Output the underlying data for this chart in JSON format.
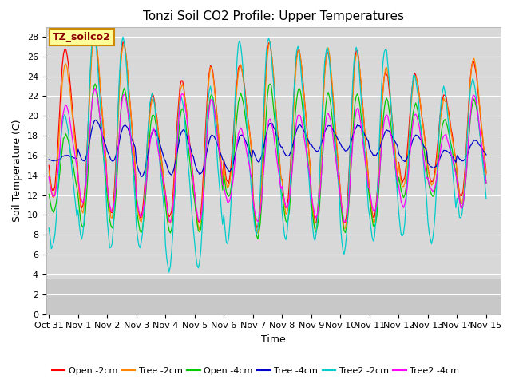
{
  "title": "Tonzi Soil CO2 Profile: Upper Temperatures",
  "xlabel": "Time",
  "ylabel": "Soil Temperature (C)",
  "ylim": [
    0,
    29
  ],
  "background_color": "#ffffff",
  "plot_bg_color": "#d8d8d8",
  "plot_bottom_color": "#c8c8c8",
  "annotation_text": "TZ_soilco2",
  "annotation_bg": "#ffff99",
  "annotation_border": "#cc8800",
  "x_tick_labels": [
    "Oct 31",
    "Nov 1",
    "Nov 2",
    "Nov 3",
    "Nov 4",
    "Nov 5",
    "Nov 6",
    "Nov 7",
    "Nov 8",
    "Nov 9",
    "Nov 10",
    "Nov 11",
    "Nov 12",
    "Nov 13",
    "Nov 14",
    "Nov 15"
  ],
  "series": [
    {
      "label": "Open -2cm",
      "color": "#ff0000"
    },
    {
      "label": "Tree -2cm",
      "color": "#ff8800"
    },
    {
      "label": "Open -4cm",
      "color": "#00cc00"
    },
    {
      "label": "Tree -4cm",
      "color": "#0000cc"
    },
    {
      "label": "Tree2 -2cm",
      "color": "#00cccc"
    },
    {
      "label": "Tree2 -4cm",
      "color": "#ff00ff"
    }
  ],
  "yticks": [
    0,
    2,
    4,
    6,
    8,
    10,
    12,
    14,
    16,
    18,
    20,
    22,
    24,
    26,
    28
  ],
  "grid_color": "#ffffff",
  "title_fontsize": 11,
  "axis_label_fontsize": 9,
  "tick_fontsize": 8,
  "legend_fontsize": 8
}
